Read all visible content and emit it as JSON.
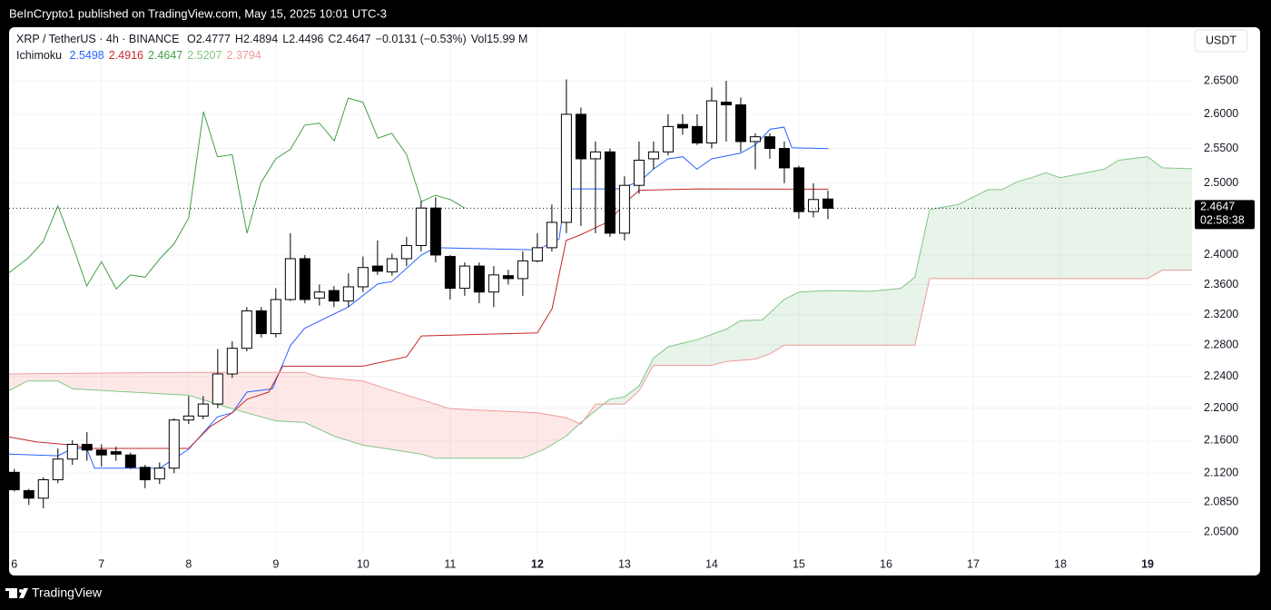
{
  "chart_data": {
    "type": "candlestick",
    "published": "BeInCrypto1 published on TradingView.com, May 15, 2025 10:01 UTC-3",
    "header": {
      "symbol": "XRP / TetherUS · 4h · BINANCE",
      "ohlc": [
        {
          "label": "O",
          "value": "2.4777"
        },
        {
          "label": "H",
          "value": "2.4894"
        },
        {
          "label": "L",
          "value": "2.4496"
        },
        {
          "label": "C",
          "value": "2.4647"
        }
      ],
      "change": "−0.0131 (−0.53%)",
      "volume": "Vol15.99 M"
    },
    "indicator": "Ichimoku",
    "currency": "USDT",
    "footer": "TradingView",
    "up_color": "#ffffff",
    "down_color": "#000000",
    "outline_color": "#000000",
    "log_scale": true,
    "grid": true,
    "xlim": [
      5.94,
      19.51
    ],
    "ylim": [
      2.025,
      2.732
    ],
    "xticks": [
      6,
      7,
      8,
      9,
      10,
      11,
      12,
      13,
      14,
      15,
      16,
      17,
      18,
      19
    ],
    "xticks_bold": [
      12,
      19
    ],
    "yticks": [
      {
        "value": 2.05,
        "label": "2.0500"
      },
      {
        "value": 2.085,
        "label": "2.0850"
      },
      {
        "value": 2.12,
        "label": "2.1200"
      },
      {
        "value": 2.16,
        "label": "2.1600"
      },
      {
        "value": 2.2,
        "label": "2.2000"
      },
      {
        "value": 2.24,
        "label": "2.2400"
      },
      {
        "value": 2.28,
        "label": "2.2800"
      },
      {
        "value": 2.32,
        "label": "2.3200"
      },
      {
        "value": 2.36,
        "label": "2.3600"
      },
      {
        "value": 2.4,
        "label": "2.4000"
      },
      {
        "value": 2.5,
        "label": "2.5000"
      },
      {
        "value": 2.55,
        "label": "2.5500"
      },
      {
        "value": 2.6,
        "label": "2.6000"
      },
      {
        "value": 2.65,
        "label": "2.6500"
      }
    ],
    "x": [
      6,
      6.1667,
      6.3333,
      6.5,
      6.6667,
      6.8333,
      7,
      7.1667,
      7.3333,
      7.5,
      7.6667,
      7.8333,
      8,
      8.1667,
      8.3333,
      8.5,
      8.6667,
      8.8333,
      9,
      9.1667,
      9.3333,
      9.5,
      9.6667,
      9.8333,
      10,
      10.1667,
      10.3333,
      10.5,
      10.6667,
      10.8333,
      11,
      11.1667,
      11.3333,
      11.5,
      11.6667,
      11.8333,
      12,
      12.1667,
      12.3333,
      12.5,
      12.6667,
      12.8333,
      13,
      13.1667,
      13.3333,
      13.5,
      13.6667,
      13.8333,
      14,
      14.1667,
      14.3333,
      14.5,
      14.6667,
      14.8333,
      15,
      15.1667,
      15.3333
    ],
    "open": [
      2.121,
      2.099,
      2.09,
      2.112,
      2.137,
      2.155,
      2.148,
      2.146,
      2.142,
      2.127,
      2.113,
      2.126,
      2.185,
      2.19,
      2.205,
      2.243,
      2.276,
      2.325,
      2.295,
      2.34,
      2.395,
      2.342,
      2.352,
      2.338,
      2.357,
      2.385,
      2.377,
      2.395,
      2.413,
      2.465,
      2.398,
      2.355,
      2.385,
      2.35,
      2.372,
      2.368,
      2.392,
      2.41,
      2.445,
      2.6,
      2.535,
      2.545,
      2.43,
      2.497,
      2.535,
      2.545,
      2.585,
      2.582,
      2.558,
      2.618,
      2.614,
      2.56,
      2.567,
      2.55,
      2.522,
      2.46,
      2.4777
    ],
    "high": [
      2.125,
      2.101,
      2.115,
      2.15,
      2.16,
      2.17,
      2.155,
      2.152,
      2.145,
      2.13,
      2.133,
      2.187,
      2.215,
      2.215,
      2.275,
      2.285,
      2.33,
      2.33,
      2.355,
      2.43,
      2.4,
      2.36,
      2.358,
      2.375,
      2.398,
      2.42,
      2.402,
      2.425,
      2.475,
      2.48,
      2.4,
      2.39,
      2.39,
      2.385,
      2.38,
      2.405,
      2.43,
      2.47,
      2.652,
      2.61,
      2.56,
      2.55,
      2.51,
      2.56,
      2.56,
      2.6,
      2.6,
      2.6,
      2.64,
      2.65,
      2.625,
      2.572,
      2.572,
      2.56,
      2.525,
      2.5,
      2.4894
    ],
    "low": [
      2.098,
      2.082,
      2.078,
      2.108,
      2.13,
      2.135,
      2.128,
      2.135,
      2.125,
      2.102,
      2.107,
      2.12,
      2.18,
      2.186,
      2.2,
      2.238,
      2.272,
      2.29,
      2.29,
      2.338,
      2.335,
      2.332,
      2.33,
      2.33,
      2.35,
      2.373,
      2.372,
      2.385,
      2.405,
      2.39,
      2.34,
      2.345,
      2.335,
      2.33,
      2.36,
      2.345,
      2.39,
      2.405,
      2.43,
      2.44,
      2.43,
      2.425,
      2.42,
      2.485,
      2.52,
      2.54,
      2.57,
      2.555,
      2.55,
      2.56,
      2.545,
      2.52,
      2.535,
      2.5,
      2.45,
      2.452,
      2.4496
    ],
    "close": [
      2.1,
      2.09,
      2.112,
      2.137,
      2.155,
      2.148,
      2.142,
      2.143,
      2.127,
      2.112,
      2.126,
      2.185,
      2.19,
      2.205,
      2.243,
      2.276,
      2.325,
      2.295,
      2.34,
      2.395,
      2.34,
      2.35,
      2.338,
      2.357,
      2.383,
      2.378,
      2.395,
      2.413,
      2.465,
      2.4,
      2.355,
      2.385,
      2.35,
      2.373,
      2.368,
      2.392,
      2.41,
      2.445,
      2.6,
      2.535,
      2.545,
      2.43,
      2.497,
      2.533,
      2.545,
      2.582,
      2.58,
      2.558,
      2.62,
      2.614,
      2.56,
      2.567,
      2.55,
      2.522,
      2.46,
      2.477,
      2.4647
    ],
    "lines": [
      {
        "color": "#2962ff",
        "value_label": "2.5498",
        "x": [
          5.94,
          6.5,
          6.67,
          6.83,
          6.92,
          7.67,
          8.0,
          8.33,
          8.5,
          8.67,
          8.96,
          9.17,
          9.33,
          9.83,
          10.17,
          10.33,
          10.67,
          10.83,
          12.0,
          12.25,
          12.33,
          12.92,
          13.17,
          13.33,
          13.5,
          13.67,
          13.83,
          14.0,
          14.33,
          14.5,
          14.67,
          14.83,
          14.92,
          15.34
        ],
        "values": [
          2.143,
          2.141,
          2.15,
          2.15,
          2.126,
          2.126,
          2.149,
          2.189,
          2.194,
          2.22,
          2.224,
          2.28,
          2.302,
          2.33,
          2.361,
          2.364,
          2.4,
          2.41,
          2.407,
          2.422,
          2.492,
          2.492,
          2.502,
          2.52,
          2.535,
          2.538,
          2.52,
          2.535,
          2.543,
          2.555,
          2.578,
          2.581,
          2.551,
          2.5498
        ]
      },
      {
        "color": "#c62828",
        "value_label": "2.4916",
        "x": [
          5.94,
          6.25,
          6.67,
          6.83,
          8.0,
          8.25,
          8.5,
          8.67,
          8.92,
          9.08,
          10.0,
          10.5,
          10.67,
          12.0,
          12.17,
          12.33,
          12.5,
          12.83,
          13.0,
          13.17,
          13.83,
          15.34
        ],
        "values": [
          2.164,
          2.158,
          2.154,
          2.15,
          2.15,
          2.177,
          2.194,
          2.211,
          2.22,
          2.253,
          2.253,
          2.265,
          2.292,
          2.296,
          2.328,
          2.42,
          2.428,
          2.447,
          2.472,
          2.49,
          2.492,
          2.4916
        ]
      },
      {
        "color": "#43a047",
        "value_label": "2.4647",
        "x": [
          5.94,
          6.15,
          6.33,
          6.5,
          6.67,
          6.83,
          7.0,
          7.17,
          7.33,
          7.5,
          7.67,
          7.83,
          8.0,
          8.17,
          8.33,
          8.5,
          8.67,
          8.83,
          9.0,
          9.17,
          9.33,
          9.5,
          9.67,
          9.83,
          10.0,
          10.17,
          10.33,
          10.5,
          10.67,
          10.83,
          11.0,
          11.17
        ],
        "values": [
          2.376,
          2.395,
          2.418,
          2.468,
          2.413,
          2.358,
          2.391,
          2.354,
          2.373,
          2.37,
          2.395,
          2.415,
          2.451,
          2.604,
          2.538,
          2.541,
          2.43,
          2.501,
          2.535,
          2.549,
          2.584,
          2.587,
          2.561,
          2.624,
          2.618,
          2.565,
          2.572,
          2.541,
          2.474,
          2.483,
          2.477,
          2.4647
        ]
      },
      {
        "color": "#81c784",
        "value_label": "2.5207",
        "x": [
          5.94,
          6.15,
          6.5,
          6.67,
          8.0,
          8.5,
          9.0,
          9.33,
          9.67,
          10.0,
          10.67,
          10.83,
          11.83,
          12.08,
          12.33,
          12.5,
          12.83,
          13.0,
          13.17,
          13.33,
          13.5,
          13.83,
          14.17,
          14.33,
          14.58,
          14.83,
          15.0,
          15.33,
          15.83,
          16.17,
          16.33,
          16.5,
          16.83,
          17.17,
          17.33,
          17.5,
          17.67,
          17.83,
          18.0,
          18.5,
          18.67,
          19.0,
          19.17,
          19.51
        ],
        "values": [
          2.222,
          2.234,
          2.234,
          2.224,
          2.216,
          2.199,
          2.184,
          2.182,
          2.165,
          2.154,
          2.143,
          2.138,
          2.138,
          2.149,
          2.165,
          2.182,
          2.211,
          2.214,
          2.228,
          2.263,
          2.278,
          2.287,
          2.301,
          2.312,
          2.313,
          2.34,
          2.35,
          2.352,
          2.351,
          2.355,
          2.37,
          2.463,
          2.47,
          2.491,
          2.491,
          2.502,
          2.508,
          2.515,
          2.508,
          2.52,
          2.533,
          2.538,
          2.522,
          2.5207
        ]
      },
      {
        "color": "#ef9a9a",
        "value_label": "2.3794",
        "x": [
          5.94,
          8.0,
          9.33,
          9.5,
          10.0,
          10.33,
          11.0,
          12.0,
          12.33,
          12.5,
          12.67,
          13.0,
          13.17,
          13.33,
          14.0,
          14.17,
          14.5,
          14.67,
          14.83,
          16.33,
          16.5,
          19.0,
          19.17,
          19.51
        ],
        "values": [
          2.243,
          2.245,
          2.245,
          2.239,
          2.234,
          2.222,
          2.199,
          2.194,
          2.188,
          2.18,
          2.205,
          2.205,
          2.222,
          2.254,
          2.254,
          2.259,
          2.262,
          2.269,
          2.28,
          2.28,
          2.368,
          2.368,
          2.3794,
          2.3794
        ]
      }
    ],
    "cloud_colors": [
      "rgba(67,160,71,0.12)",
      "rgba(244,67,54,0.12)"
    ],
    "last_price": {
      "value": 2.4647,
      "label": "2.4647",
      "countdown": "02:58:38"
    }
  }
}
